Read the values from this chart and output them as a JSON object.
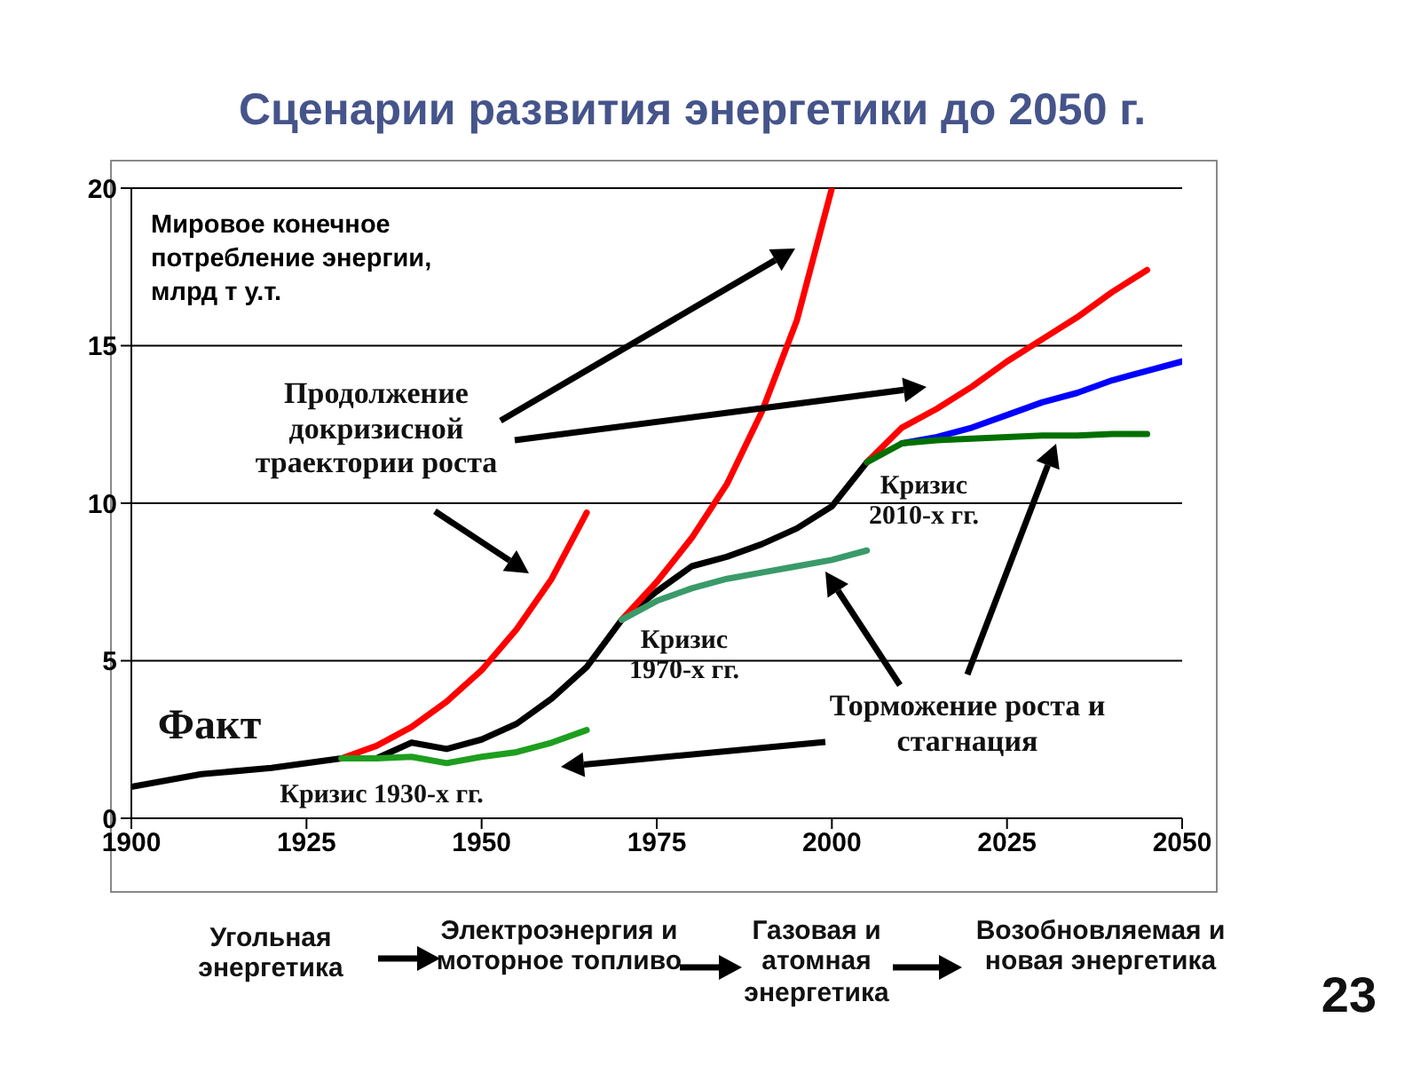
{
  "chart_data": {
    "type": "line",
    "title": "Сценарии развития энергетики до 2050 г.",
    "ylabel": "Мировое конечное потребление энергии, млрд т у.т.",
    "series": [
      {
        "color": "#000000",
        "x": [
          1900,
          1910,
          1920,
          1930,
          1935,
          1940,
          1945,
          1950,
          1955,
          1960,
          1965,
          1970,
          1975,
          1980,
          1985,
          1990,
          1995,
          2000,
          2005
        ],
        "values": [
          1.0,
          1.4,
          1.6,
          1.9,
          1.9,
          2.4,
          2.2,
          2.5,
          3.0,
          3.8,
          4.8,
          6.3,
          7.2,
          8.0,
          8.3,
          8.7,
          9.2,
          9.9,
          11.3
        ]
      },
      {
        "color": "#ff0000",
        "x": [
          1930,
          1935,
          1940,
          1945,
          1950,
          1955,
          1960,
          1965
        ],
        "values": [
          1.9,
          2.3,
          2.9,
          3.7,
          4.7,
          6.0,
          7.6,
          9.7
        ]
      },
      {
        "color": "#1e9e1e",
        "x": [
          1930,
          1935,
          1940,
          1945,
          1950,
          1955,
          1960,
          1965
        ],
        "values": [
          1.9,
          1.9,
          1.95,
          1.75,
          1.95,
          2.1,
          2.4,
          2.8
        ]
      },
      {
        "color": "#ff0000",
        "x": [
          1970,
          1975,
          1980,
          1985,
          1990,
          1995,
          2000
        ],
        "values": [
          6.3,
          7.5,
          8.9,
          10.6,
          12.9,
          15.8,
          20
        ]
      },
      {
        "color": "#3a9a6a",
        "x": [
          1970,
          1975,
          1980,
          1985,
          1990,
          1995,
          2000,
          2005
        ],
        "values": [
          6.3,
          6.9,
          7.3,
          7.6,
          7.8,
          8.0,
          8.2,
          8.5
        ]
      },
      {
        "color": "#ff0000",
        "x": [
          2005,
          2010,
          2015,
          2020,
          2025,
          2030,
          2035,
          2040,
          2045
        ],
        "values": [
          11.3,
          12.4,
          13.0,
          13.7,
          14.5,
          15.2,
          15.9,
          16.7,
          17.4
        ]
      },
      {
        "color": "#0000ff",
        "x": [
          2010,
          2015,
          2020,
          2025,
          2030,
          2035,
          2040,
          2045,
          2050
        ],
        "values": [
          11.9,
          12.1,
          12.4,
          12.8,
          13.2,
          13.5,
          13.9,
          14.2,
          14.5
        ]
      },
      {
        "color": "#007000",
        "x": [
          2005,
          2010,
          2015,
          2020,
          2025,
          2030,
          2035,
          2040,
          2045
        ],
        "values": [
          11.3,
          11.9,
          12.0,
          12.05,
          12.1,
          12.15,
          12.15,
          12.2,
          12.2
        ]
      }
    ],
    "xlim": [
      1900,
      2050
    ],
    "xticks": [
      1900,
      1925,
      1950,
      1975,
      2000,
      2025,
      2050
    ],
    "ylim": [
      0,
      20
    ],
    "yticks": [
      0,
      5,
      10,
      15,
      20
    ],
    "grid": "y",
    "legend": false,
    "marker": "none",
    "line_style": "solid",
    "annotations": [
      "Продолжение докризисной траектории роста",
      "Кризис 1970-х гг.",
      "Кризис 2010-х гг.",
      "Торможение роста и стагнация",
      "Кризис 1930-х гг.",
      "Угольная энергетика",
      "Электроэнергия и моторное топливо",
      "Газовая и атомная энергетика",
      "Возобновляемая и новая энергетика",
      "23",
      "Факт"
    ]
  }
}
